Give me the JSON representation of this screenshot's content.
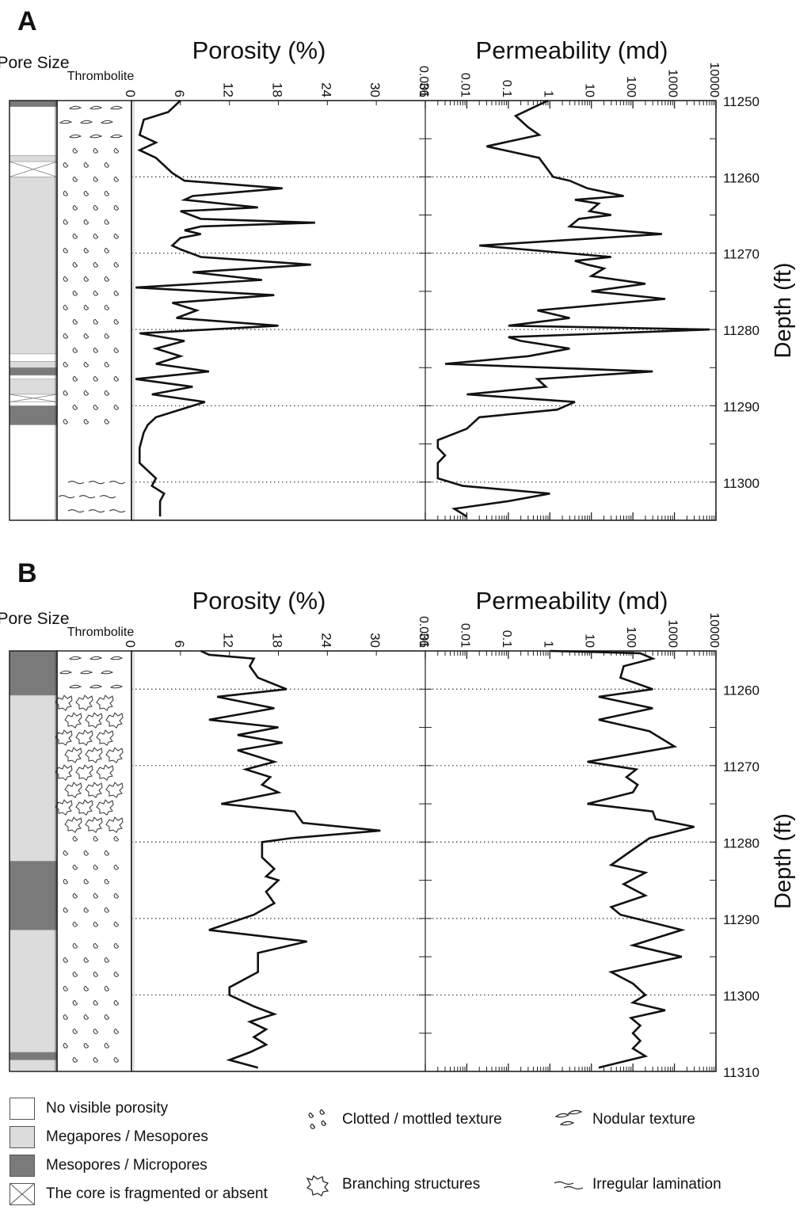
{
  "chart_data": [
    {
      "panel": "A",
      "type": "line",
      "columns": {
        "pore": "Pore Size",
        "litho": "Thrombolite"
      },
      "depth_label": "Depth (ft)",
      "depth_range": [
        11250,
        11305
      ],
      "depth_ticks": [
        "11250",
        "11260",
        "11270",
        "11280",
        "11290",
        "11300"
      ],
      "porosity": {
        "title": "Porosity (%)",
        "ticks": [
          "0",
          "6",
          "12",
          "18",
          "24",
          "30",
          "36"
        ],
        "xlim": [
          0,
          36
        ],
        "depth": [
          11250,
          11251.5,
          11252.5,
          11254.5,
          11255.5,
          11256.5,
          11257.5,
          11259.5,
          11260.5,
          11261.5,
          11262.5,
          11263,
          11264,
          11264.5,
          11265.5,
          11266,
          11266.5,
          11267,
          11267.5,
          11268,
          11269,
          11269.5,
          11270.5,
          11271.5,
          11272.5,
          11273.5,
          11274.5,
          11275.5,
          11276.5,
          11277.5,
          11278.5,
          11279.5,
          11280.5,
          11281.5,
          11282.5,
          11283.5,
          11284.5,
          11285.5,
          11286.5,
          11287.5,
          11288.5,
          11289.5,
          11290.5,
          11291.5,
          11292.5,
          11293.5,
          11295.5,
          11297.5,
          11299.5,
          11300.5,
          11301.5,
          11302.5,
          11303.5,
          11304.5
        ],
        "values": [
          6,
          4.5,
          1.5,
          1,
          3,
          1,
          3,
          5,
          6.5,
          18.5,
          7.5,
          6.5,
          15.5,
          6,
          8.5,
          22.5,
          8.5,
          6.5,
          8.5,
          6,
          5,
          6,
          8.5,
          22,
          7.5,
          16,
          0.5,
          17.5,
          5,
          8,
          5.5,
          18,
          1,
          6.5,
          3,
          6,
          3,
          9.5,
          0.5,
          7.5,
          2.5,
          9,
          6,
          3,
          2,
          1.5,
          1,
          1,
          3,
          2.5,
          4,
          3.5,
          3.5,
          3.5
        ]
      },
      "permeability": {
        "title": "Permeability (md)",
        "ticks": [
          "0.001",
          "0.01",
          "0.1",
          "1",
          "10",
          "100",
          "1000",
          "10000"
        ],
        "xlim_log10": [
          -3,
          4
        ],
        "depth": [
          11250,
          11252,
          11253.5,
          11254.5,
          11256,
          11257.5,
          11260,
          11260.5,
          11261.5,
          11262.5,
          11263,
          11263.5,
          11264.5,
          11265,
          11265.5,
          11266.5,
          11267.5,
          11269,
          11270.5,
          11271,
          11271.5,
          11272,
          11273,
          11274,
          11275,
          11276,
          11277.5,
          11278.5,
          11279.5,
          11280,
          11281,
          11281.5,
          11282.5,
          11283.5,
          11284.5,
          11285.5,
          11286.5,
          11287.5,
          11288.5,
          11289.5,
          11290.5,
          11291.5,
          11293,
          11294.5,
          11295.5,
          11296.5,
          11297.5,
          11298.5,
          11299.5,
          11300.5,
          11301.5,
          11302.5,
          11303.5,
          11304.5
        ],
        "values": [
          0.9,
          0.15,
          0.3,
          0.55,
          0.03,
          0.55,
          1.2,
          3,
          8,
          60,
          4,
          15,
          9,
          30,
          5,
          3,
          500,
          0.02,
          30,
          4,
          8,
          20,
          10,
          200,
          10,
          600,
          0.5,
          3,
          0.1,
          7000,
          0.1,
          0.2,
          3,
          0.3,
          0.003,
          300,
          0.5,
          0.8,
          0.01,
          4,
          1.5,
          0.02,
          0.01,
          0.002,
          0.002,
          0.003,
          0.002,
          0.002,
          0.002,
          0.008,
          1,
          0.1,
          0.005,
          0.01
        ]
      },
      "pore_bands": [
        {
          "from": 11250,
          "to": 11250.8,
          "class": "meso"
        },
        {
          "from": 11250.8,
          "to": 11257.2,
          "class": "none"
        },
        {
          "from": 11257.2,
          "to": 11258.0,
          "class": "mega"
        },
        {
          "from": 11258.0,
          "to": 11260.0,
          "class": "frag"
        },
        {
          "from": 11260.0,
          "to": 11283.2,
          "class": "mega"
        },
        {
          "from": 11283.2,
          "to": 11284.2,
          "class": "none"
        },
        {
          "from": 11284.2,
          "to": 11285.0,
          "class": "mega"
        },
        {
          "from": 11285.0,
          "to": 11286.0,
          "class": "meso"
        },
        {
          "from": 11286.0,
          "to": 11286.5,
          "class": "none"
        },
        {
          "from": 11286.5,
          "to": 11288.5,
          "class": "mega"
        },
        {
          "from": 11288.5,
          "to": 11289.5,
          "class": "frag"
        },
        {
          "from": 11289.5,
          "to": 11290.0,
          "class": "none"
        },
        {
          "from": 11290.0,
          "to": 11292.5,
          "class": "meso"
        },
        {
          "from": 11292.5,
          "to": 11305,
          "class": "none"
        }
      ],
      "texture_bands": [
        {
          "from": 11250,
          "to": 11255.5,
          "kind": "nodular"
        },
        {
          "from": 11255.5,
          "to": 11293.5,
          "kind": "clotted"
        },
        {
          "from": 11299,
          "to": 11305,
          "kind": "lamination"
        }
      ]
    },
    {
      "panel": "B",
      "type": "line",
      "columns": {
        "pore": "Pore Size",
        "litho": "Thrombolite"
      },
      "depth_label": "Depth (ft)",
      "depth_range": [
        11255,
        11310
      ],
      "depth_ticks": [
        "11260",
        "11270",
        "11280",
        "11290",
        "11300",
        "11310"
      ],
      "porosity": {
        "title": "Porosity (%)",
        "ticks": [
          "0",
          "6",
          "12",
          "18",
          "24",
          "30",
          "36"
        ],
        "xlim": [
          0,
          36
        ],
        "depth": [
          11255,
          11255.5,
          11256,
          11257,
          11258.5,
          11260,
          11261,
          11262.5,
          11264,
          11265,
          11266,
          11267,
          11268,
          11269.5,
          11270.5,
          11271.5,
          11272.5,
          11273.5,
          11275,
          11276,
          11277.5,
          11278.5,
          11279.5,
          11280,
          11282,
          11283.5,
          11284.5,
          11285,
          11286.5,
          11288,
          11289.5,
          11291.5,
          11293,
          11294.5,
          11297,
          11299,
          11300,
          11301.5,
          11302.5,
          11303.5,
          11304.5,
          11305.5,
          11306.5,
          11307.5,
          11308.5,
          11309.5
        ],
        "values": [
          8.5,
          9.5,
          15,
          14.5,
          15.5,
          19,
          10.5,
          17.5,
          9.5,
          18,
          13,
          18.5,
          13,
          17.5,
          14,
          17,
          16,
          18,
          11,
          20,
          21,
          30.5,
          19.5,
          16,
          16,
          17.5,
          16.5,
          18,
          16.5,
          17.5,
          15,
          9.5,
          21.5,
          15.5,
          15.5,
          12,
          12,
          15,
          17.5,
          14.5,
          16.5,
          15,
          16.5,
          14.5,
          12,
          15.5
        ]
      },
      "permeability": {
        "title": "Permeability (md)",
        "ticks": [
          "0.001",
          "0.01",
          "0.1",
          "1",
          "10",
          "100",
          "1000",
          "10000"
        ],
        "xlim_log10": [
          -3,
          4
        ],
        "depth": [
          11255,
          11255.3,
          11256,
          11257,
          11258.5,
          11260,
          11261,
          11262.5,
          11264,
          11265.5,
          11267.5,
          11269.5,
          11270.5,
          11271.5,
          11272.5,
          11273.5,
          11275,
          11276,
          11277,
          11278,
          11279.5,
          11281,
          11283,
          11284,
          11285.5,
          11287,
          11288.5,
          11289.5,
          11291.5,
          11293.5,
          11295,
          11297,
          11298.5,
          11300,
          11301,
          11302,
          11303,
          11304,
          11305,
          11306,
          11307,
          11308,
          11309.5
        ],
        "values": [
          1,
          150,
          300,
          60,
          50,
          300,
          15,
          300,
          15,
          250,
          1000,
          8,
          120,
          70,
          130,
          100,
          8,
          300,
          350,
          3000,
          250,
          100,
          30,
          200,
          60,
          200,
          30,
          50,
          1500,
          100,
          1500,
          30,
          100,
          200,
          100,
          600,
          90,
          150,
          100,
          150,
          100,
          200,
          15
        ]
      },
      "pore_bands": [
        {
          "from": 11255,
          "to": 11260.8,
          "class": "meso"
        },
        {
          "from": 11260.8,
          "to": 11282.5,
          "class": "mega"
        },
        {
          "from": 11282.5,
          "to": 11291.5,
          "class": "meso"
        },
        {
          "from": 11291.5,
          "to": 11307.5,
          "class": "mega"
        },
        {
          "from": 11307.5,
          "to": 11308.5,
          "class": "meso"
        },
        {
          "from": 11308.5,
          "to": 11310,
          "class": "mega"
        }
      ],
      "texture_bands": [
        {
          "from": 11255,
          "to": 11260.5,
          "kind": "nodular"
        },
        {
          "from": 11260.5,
          "to": 11278.5,
          "kind": "branching"
        },
        {
          "from": 11278.5,
          "to": 11291.5,
          "kind": "clotted"
        },
        {
          "from": 11291.5,
          "to": 11292.5,
          "kind": "nodular"
        },
        {
          "from": 11292.5,
          "to": 11310,
          "kind": "clotted"
        }
      ]
    }
  ],
  "legend": {
    "no_porosity": "No visible porosity",
    "mega": "Megapores / Mesopores",
    "meso": "Mesopores / Micropores",
    "frag": "The core is fragmented or absent",
    "clotted": "Clotted / mottled texture",
    "branching": "Branching structures",
    "nodular": "Nodular texture",
    "lamination": "Irregular lamination"
  },
  "colors": {
    "meso": "#7a7a7a",
    "mega": "#dcdcdc",
    "none": "#ffffff",
    "line": "#111111"
  }
}
